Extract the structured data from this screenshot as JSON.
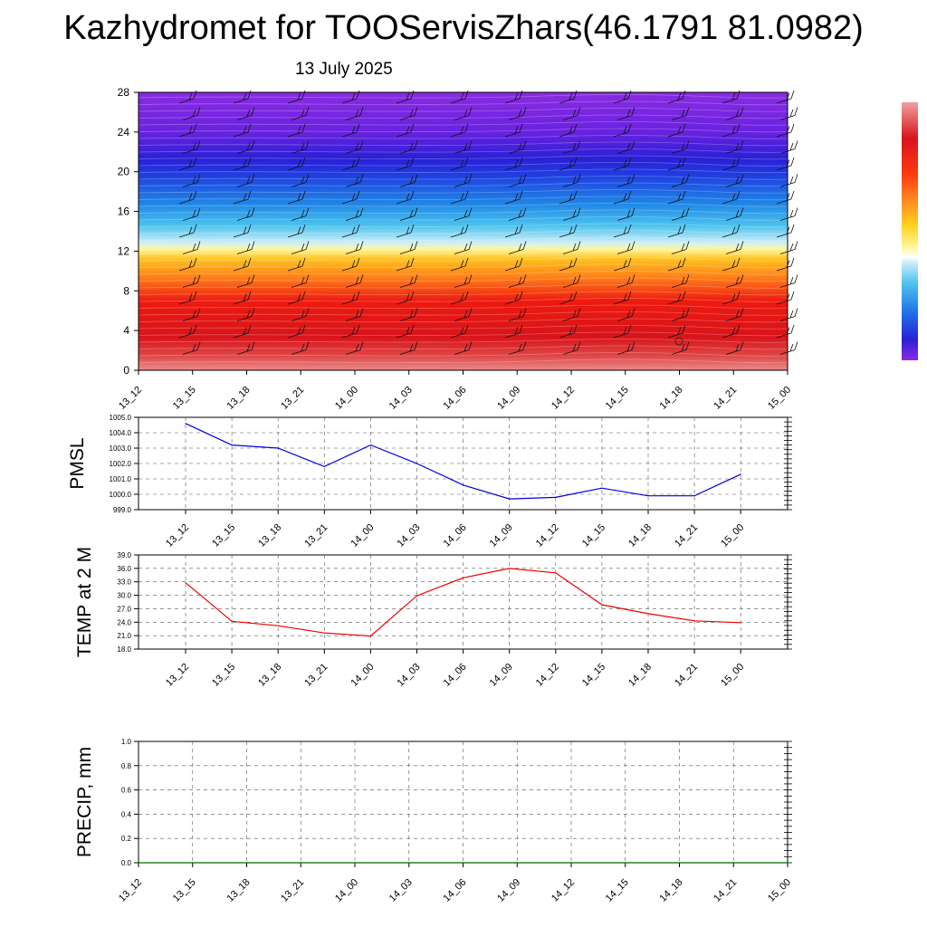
{
  "title": "Kazhydromet for TOOServisZhars(46.1791 81.0982)",
  "subtitle": "13 July 2025",
  "chart_data": [
    {
      "type": "heatmap",
      "times": [
        "13_12",
        "13_15",
        "13_18",
        "13_21",
        "14_00",
        "14_03",
        "14_06",
        "14_09",
        "14_12",
        "14_15",
        "14_18",
        "14_21",
        "15_00"
      ],
      "y_ticks": [
        "0",
        "4",
        "8",
        "12",
        "16",
        "20",
        "24",
        "28"
      ],
      "ylim": [
        0,
        28
      ],
      "has_wind_barbs": true,
      "colorbar": [
        "#8a2be2",
        "#5a1fd6",
        "#2233dd",
        "#1f66e6",
        "#1e9be6",
        "#4fc3ee",
        "#bfe8f5",
        "#fff6a0",
        "#ffd41f",
        "#ffa21f",
        "#ff6a1f",
        "#ff2a10",
        "#e60f0f",
        "#d8161c",
        "#ea8080"
      ]
    },
    {
      "type": "line",
      "ylabel": "PMSL",
      "x": [
        "13_12",
        "13_15",
        "13_18",
        "13_21",
        "14_00",
        "14_03",
        "14_06",
        "14_09",
        "14_12",
        "14_15",
        "14_18",
        "14_21",
        "15_00"
      ],
      "values": [
        1004.6,
        1003.2,
        1003.0,
        1001.8,
        1003.2,
        1002.0,
        1000.6,
        999.7,
        999.8,
        1000.4,
        999.9,
        999.9,
        1001.3
      ],
      "ylim": [
        999.0,
        1005.0
      ],
      "y_ticks": [
        "999.0",
        "1000.0",
        "1001.0",
        "1002.0",
        "1003.0",
        "1004.0",
        "1005.0"
      ],
      "color": "#0000dd",
      "grid": true
    },
    {
      "type": "line",
      "ylabel": "TEMP at 2 M",
      "x": [
        "13_12",
        "13_15",
        "13_18",
        "13_21",
        "14_00",
        "14_03",
        "14_06",
        "14_09",
        "14_12",
        "14_15",
        "14_18",
        "14_21",
        "15_00"
      ],
      "values": [
        32.8,
        24.2,
        23.2,
        21.6,
        20.9,
        29.9,
        33.9,
        36.0,
        35.0,
        27.9,
        25.9,
        24.3,
        23.9
      ],
      "ylim": [
        18.0,
        39.0
      ],
      "y_ticks": [
        "18.0",
        "21.0",
        "24.0",
        "27.0",
        "30.0",
        "33.0",
        "36.0",
        "39.0"
      ],
      "color": "#ee0000",
      "grid": true
    },
    {
      "type": "line",
      "ylabel": "PRECIP, mm",
      "x": [
        "13_12",
        "13_15",
        "13_18",
        "13_21",
        "14_00",
        "14_03",
        "14_06",
        "14_09",
        "14_12",
        "14_15",
        "14_18",
        "14_21",
        "15_00"
      ],
      "values": [
        0,
        0,
        0,
        0,
        0,
        0,
        0,
        0,
        0,
        0,
        0,
        0,
        0
      ],
      "ylim": [
        0.0,
        1.0
      ],
      "y_ticks": [
        "0.0",
        "0.2",
        "0.4",
        "0.6",
        "0.8",
        "1.0"
      ],
      "color": "#006600",
      "grid": true
    }
  ]
}
